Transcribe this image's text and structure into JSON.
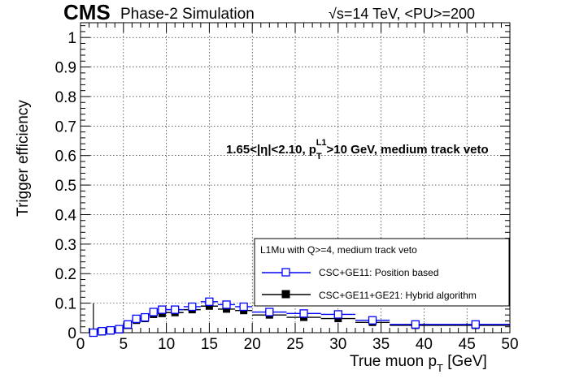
{
  "header": {
    "cms": "CMS",
    "subtitle": "Phase-2 Simulation",
    "energy_prefix": "√s=14 TeV, <PU>=200"
  },
  "annotation": {
    "cut_text": "1.65<|η|<2.10, p",
    "cut_sub": "T",
    "cut_sup": "L1",
    "cut_rest": ">10 GeV, medium track veto"
  },
  "legend": {
    "header": "L1Mu with Q>=4, medium track veto",
    "entries": [
      "CSC+GE11: Position based",
      "CSC+GE11+GE21: Hybrid algorithm"
    ]
  },
  "axis_titles": {
    "y": "Trigger efficiency",
    "x": "True muon p",
    "x_sub": "T",
    "x_unit": " [GeV]"
  },
  "colors": {
    "series1": "#0000ff",
    "series2": "#000000"
  },
  "chart_data": {
    "type": "scatter",
    "title": "",
    "xlabel": "True muon pT [GeV]",
    "ylabel": "Trigger efficiency",
    "xlim": [
      0,
      50
    ],
    "ylim": [
      0,
      1.05
    ],
    "x_ticks": [
      0,
      5,
      10,
      15,
      20,
      25,
      30,
      35,
      40,
      45,
      50
    ],
    "y_ticks": [
      0,
      0.1,
      0.2,
      0.3,
      0.4,
      0.5,
      0.6,
      0.7,
      0.8,
      0.9,
      1
    ],
    "x_tick_labels": [
      "0",
      "5",
      "10",
      "15",
      "20",
      "25",
      "30",
      "35",
      "40",
      "45",
      "50"
    ],
    "y_tick_labels": [
      "0",
      "0.1",
      "0.2",
      "0.3",
      "0.4",
      "0.5",
      "0.6",
      "0.7",
      "0.8",
      "0.9",
      "1"
    ],
    "grid": true,
    "legend_position": "bottom-right",
    "series": [
      {
        "name": "CSC+GE11: Position based",
        "marker": "open-square",
        "points": [
          {
            "x": 1.5,
            "y": 0.0,
            "xlo": 1,
            "xhi": 2,
            "ylo": 0.0,
            "yhi": 0.1
          },
          {
            "x": 2.5,
            "y": 0.005,
            "xlo": 2,
            "xhi": 3
          },
          {
            "x": 3.5,
            "y": 0.008,
            "xlo": 3,
            "xhi": 4
          },
          {
            "x": 4.5,
            "y": 0.012,
            "xlo": 4,
            "xhi": 5
          },
          {
            "x": 5.5,
            "y": 0.028,
            "xlo": 5,
            "xhi": 6
          },
          {
            "x": 6.5,
            "y": 0.047,
            "xlo": 6,
            "xhi": 7
          },
          {
            "x": 7.5,
            "y": 0.052,
            "xlo": 7,
            "xhi": 8
          },
          {
            "x": 8.5,
            "y": 0.07,
            "xlo": 8,
            "xhi": 9
          },
          {
            "x": 9.5,
            "y": 0.078,
            "xlo": 9,
            "xhi": 10
          },
          {
            "x": 11,
            "y": 0.078,
            "xlo": 10,
            "xhi": 12
          },
          {
            "x": 13,
            "y": 0.088,
            "xlo": 12,
            "xhi": 14
          },
          {
            "x": 15,
            "y": 0.105,
            "xlo": 14,
            "xhi": 16
          },
          {
            "x": 17,
            "y": 0.095,
            "xlo": 16,
            "xhi": 18
          },
          {
            "x": 19,
            "y": 0.088,
            "xlo": 18,
            "xhi": 20
          },
          {
            "x": 22,
            "y": 0.07,
            "xlo": 20,
            "xhi": 24
          },
          {
            "x": 26,
            "y": 0.065,
            "xlo": 24,
            "xhi": 28
          },
          {
            "x": 30,
            "y": 0.062,
            "xlo": 28,
            "xhi": 32
          },
          {
            "x": 34,
            "y": 0.042,
            "xlo": 32,
            "xhi": 36
          },
          {
            "x": 39,
            "y": 0.028,
            "xlo": 36,
            "xhi": 42
          },
          {
            "x": 46,
            "y": 0.028,
            "xlo": 42,
            "xhi": 50
          }
        ]
      },
      {
        "name": "CSC+GE11+GE21: Hybrid algorithm",
        "marker": "filled-square",
        "points": [
          {
            "x": 1.5,
            "y": 0.0,
            "xlo": 1,
            "xhi": 2
          },
          {
            "x": 2.5,
            "y": 0.003,
            "xlo": 2,
            "xhi": 3
          },
          {
            "x": 3.5,
            "y": 0.006,
            "xlo": 3,
            "xhi": 4
          },
          {
            "x": 4.5,
            "y": 0.01,
            "xlo": 4,
            "xhi": 5
          },
          {
            "x": 5.5,
            "y": 0.025,
            "xlo": 5,
            "xhi": 6
          },
          {
            "x": 6.5,
            "y": 0.042,
            "xlo": 6,
            "xhi": 7
          },
          {
            "x": 7.5,
            "y": 0.048,
            "xlo": 7,
            "xhi": 8
          },
          {
            "x": 8.5,
            "y": 0.062,
            "xlo": 8,
            "xhi": 9
          },
          {
            "x": 9.5,
            "y": 0.065,
            "xlo": 9,
            "xhi": 10
          },
          {
            "x": 11,
            "y": 0.068,
            "xlo": 10,
            "xhi": 12
          },
          {
            "x": 13,
            "y": 0.078,
            "xlo": 12,
            "xhi": 14
          },
          {
            "x": 15,
            "y": 0.09,
            "xlo": 14,
            "xhi": 16
          },
          {
            "x": 17,
            "y": 0.08,
            "xlo": 16,
            "xhi": 18
          },
          {
            "x": 19,
            "y": 0.075,
            "xlo": 18,
            "xhi": 20
          },
          {
            "x": 22,
            "y": 0.06,
            "xlo": 20,
            "xhi": 24
          },
          {
            "x": 26,
            "y": 0.052,
            "xlo": 24,
            "xhi": 28
          },
          {
            "x": 30,
            "y": 0.048,
            "xlo": 28,
            "xhi": 32
          },
          {
            "x": 34,
            "y": 0.035,
            "xlo": 32,
            "xhi": 36
          },
          {
            "x": 39,
            "y": 0.025,
            "xlo": 36,
            "xhi": 42
          },
          {
            "x": 46,
            "y": 0.025,
            "xlo": 42,
            "xhi": 50
          }
        ]
      }
    ]
  }
}
